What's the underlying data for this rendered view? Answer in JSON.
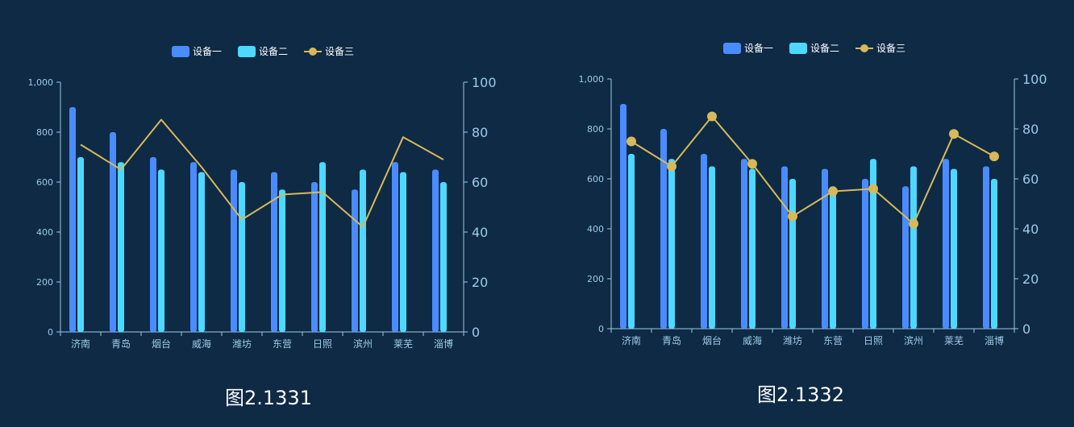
{
  "charts": [
    {
      "caption": "图2.1331",
      "legend": [
        {
          "label": "设备一",
          "kind": "bar",
          "color": "#4a8cff"
        },
        {
          "label": "设备二",
          "kind": "bar",
          "color": "#4dd9ff"
        },
        {
          "label": "设备三",
          "kind": "line",
          "color": "#d8b95a"
        }
      ],
      "show_markers": false
    },
    {
      "caption": "图2.1332",
      "legend": [
        {
          "label": "设备一",
          "kind": "bar",
          "color": "#4a8cff"
        },
        {
          "label": "设备二",
          "kind": "bar",
          "color": "#4dd9ff"
        },
        {
          "label": "设备三",
          "kind": "line",
          "color": "#d8b95a"
        }
      ],
      "show_markers": true
    }
  ],
  "chart_data": [
    {
      "type": "bar",
      "title": "图2.1331",
      "categories": [
        "济南",
        "青岛",
        "烟台",
        "威海",
        "潍坊",
        "东营",
        "日照",
        "滨州",
        "莱芜",
        "淄博"
      ],
      "series": [
        {
          "name": "设备一",
          "type": "bar",
          "axis": "left",
          "values": [
            900,
            800,
            700,
            680,
            650,
            640,
            600,
            570,
            680,
            650
          ]
        },
        {
          "name": "设备二",
          "type": "bar",
          "axis": "left",
          "values": [
            700,
            680,
            650,
            640,
            600,
            570,
            680,
            650,
            640,
            600
          ]
        },
        {
          "name": "设备三",
          "type": "line",
          "axis": "right",
          "values": [
            75,
            65,
            85,
            66,
            45,
            55,
            56,
            42,
            78,
            69
          ]
        }
      ],
      "y_left": {
        "min": 0,
        "max": 1000,
        "ticks": [
          "0",
          "200",
          "400",
          "600",
          "800",
          "1,000"
        ]
      },
      "y_right": {
        "min": 0,
        "max": 100,
        "ticks": [
          "0",
          "20",
          "40",
          "60",
          "80",
          "100"
        ]
      },
      "legend_position": "top-center",
      "grid": false
    },
    {
      "type": "bar",
      "title": "图2.1332",
      "categories": [
        "济南",
        "青岛",
        "烟台",
        "威海",
        "潍坊",
        "东营",
        "日照",
        "滨州",
        "莱芜",
        "淄博"
      ],
      "series": [
        {
          "name": "设备一",
          "type": "bar",
          "axis": "left",
          "values": [
            900,
            800,
            700,
            680,
            650,
            640,
            600,
            570,
            680,
            650
          ]
        },
        {
          "name": "设备二",
          "type": "bar",
          "axis": "left",
          "values": [
            700,
            680,
            650,
            640,
            600,
            570,
            680,
            650,
            640,
            600
          ]
        },
        {
          "name": "设备三",
          "type": "line",
          "axis": "right",
          "values": [
            75,
            65,
            85,
            66,
            45,
            55,
            56,
            42,
            78,
            69
          ]
        }
      ],
      "y_left": {
        "min": 0,
        "max": 1000,
        "ticks": [
          "0",
          "200",
          "400",
          "600",
          "800",
          "1,000"
        ]
      },
      "y_right": {
        "min": 0,
        "max": 100,
        "ticks": [
          "0",
          "20",
          "40",
          "60",
          "80",
          "100"
        ]
      },
      "legend_position": "top-center",
      "grid": false
    }
  ]
}
